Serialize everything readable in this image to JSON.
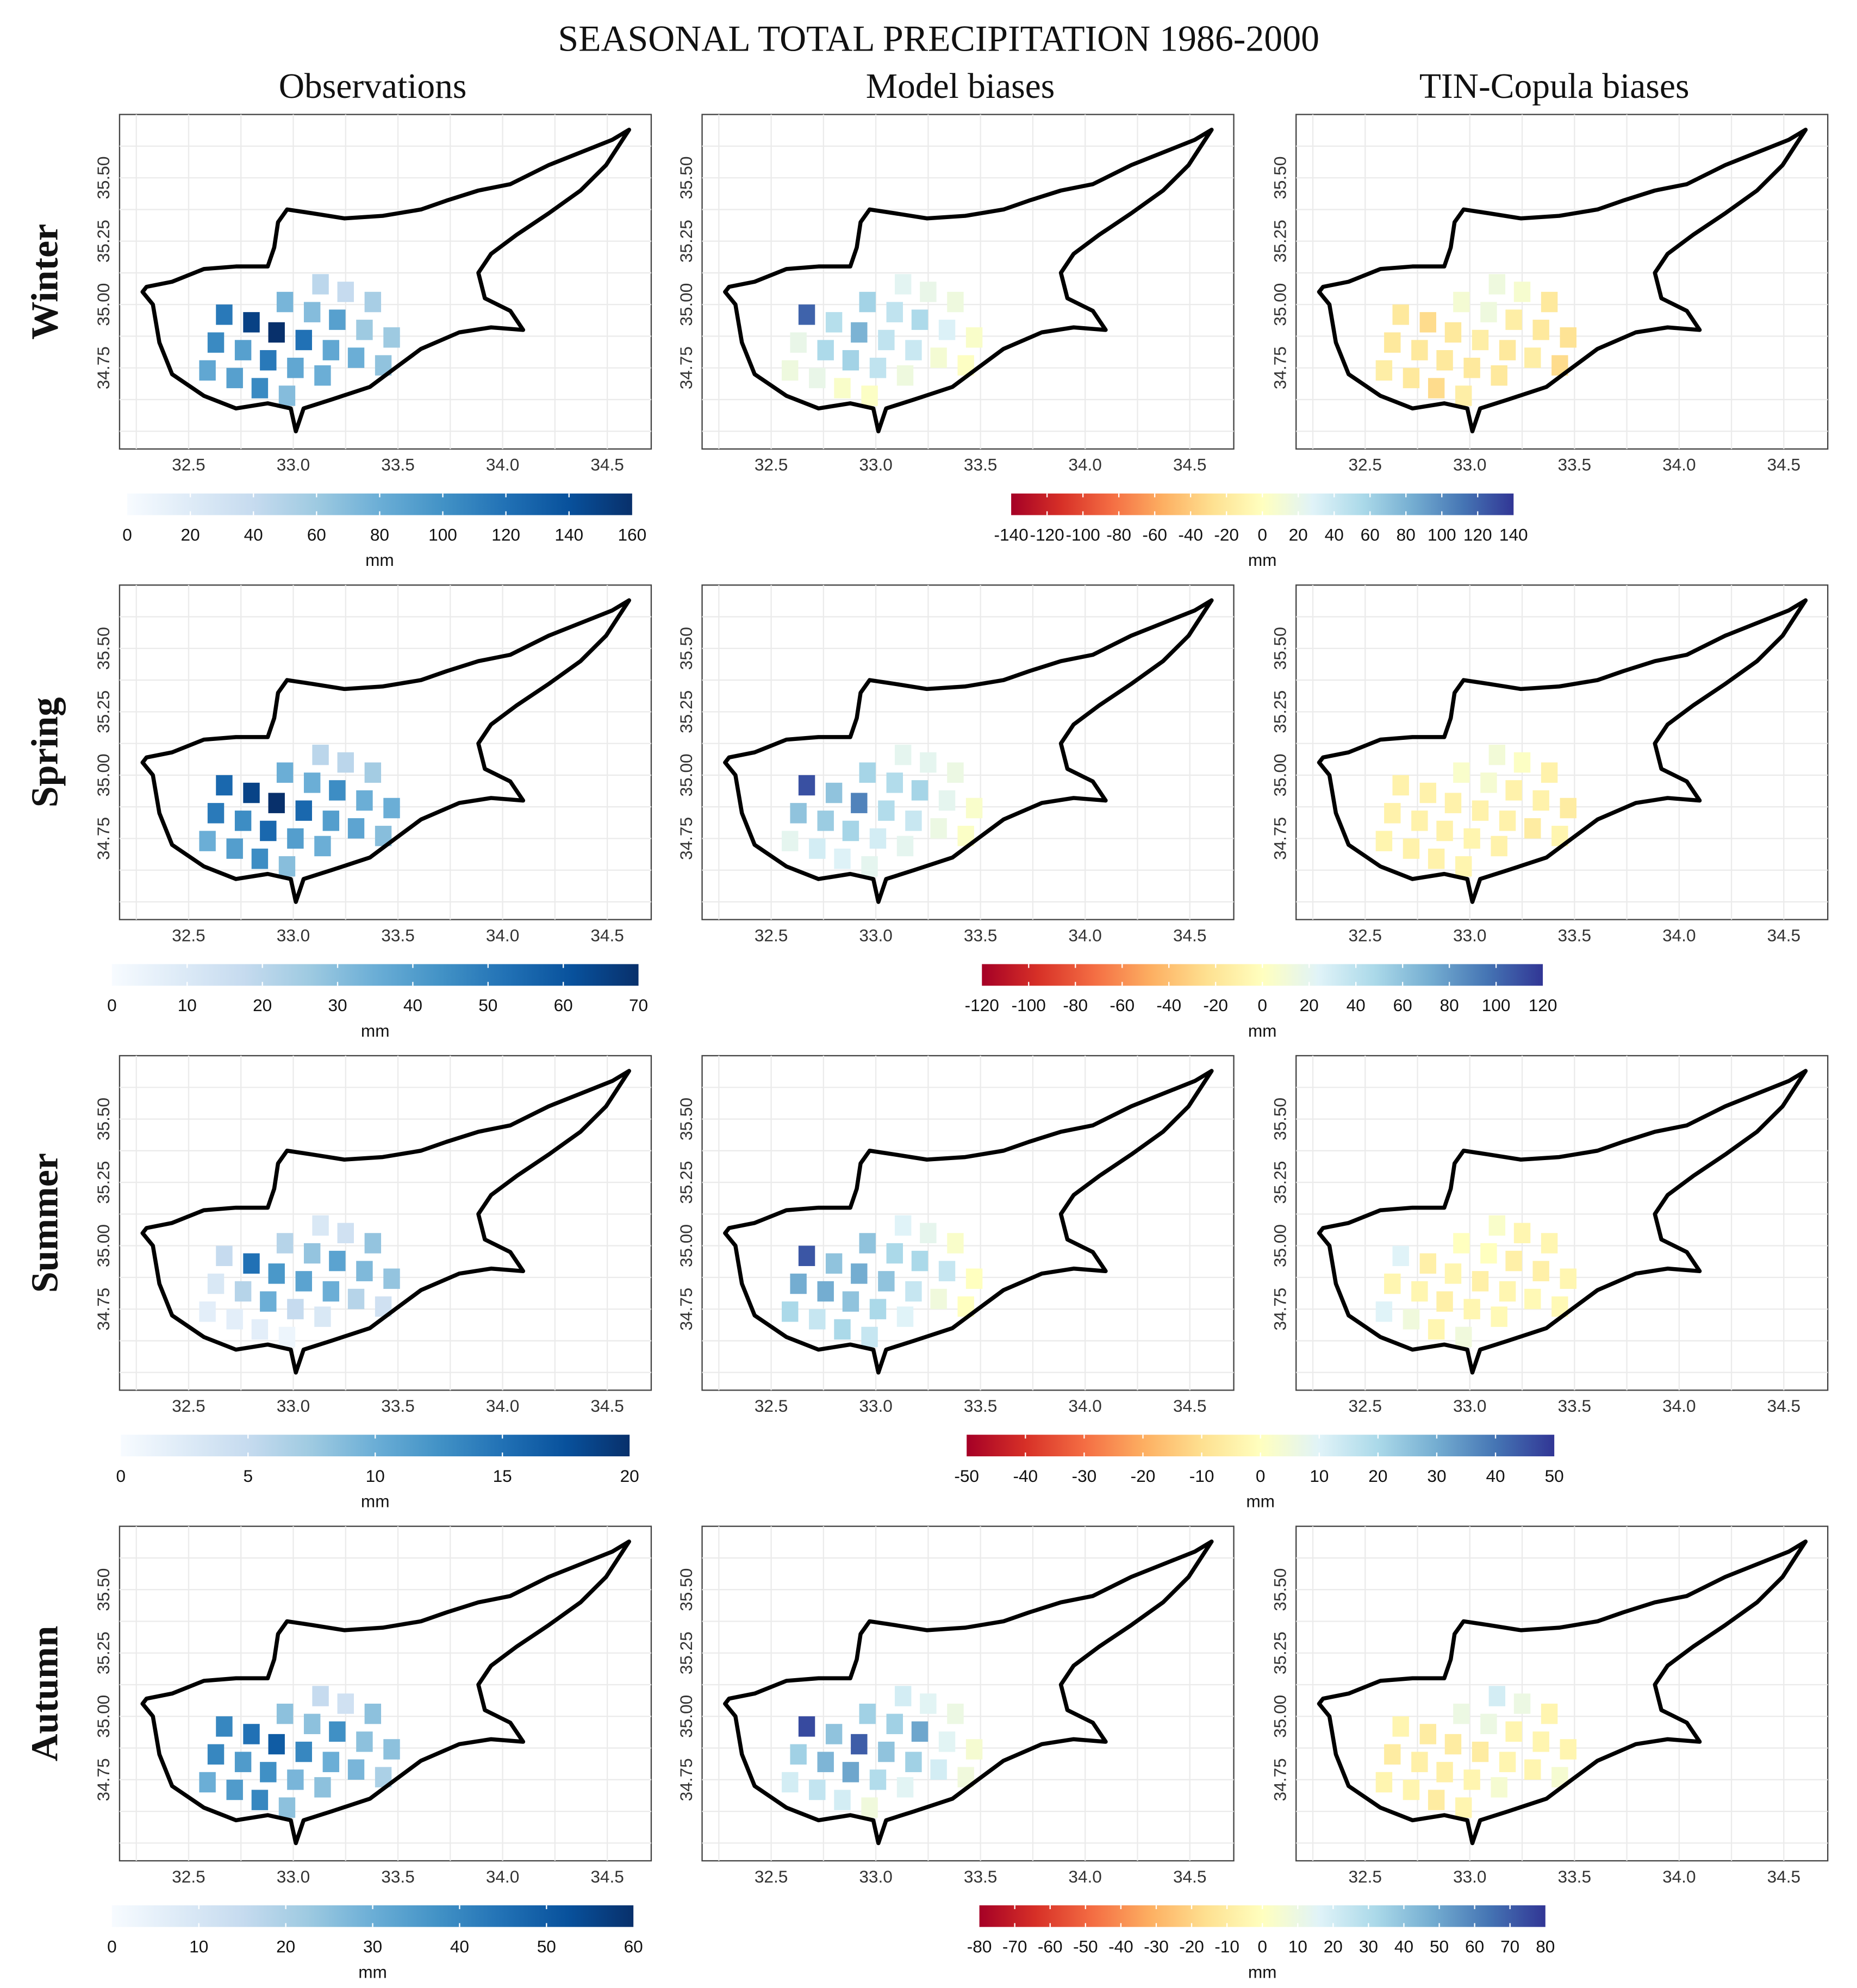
{
  "title": "SEASONAL TOTAL PRECIPITATION 1986-2000",
  "columns": [
    "Observations",
    "Model biases",
    "TIN-Copula biases"
  ],
  "unit": "mm",
  "colors": {
    "obs_scale": [
      "#f7fbff",
      "#deebf7",
      "#c6dbef",
      "#9ecae1",
      "#6baed6",
      "#4292c6",
      "#2171b5",
      "#08519c",
      "#08306b"
    ],
    "bias_scale": [
      "#a50026",
      "#d73027",
      "#f46d43",
      "#fdae61",
      "#fee090",
      "#ffffbf",
      "#e0f3f8",
      "#abd9e9",
      "#74add1",
      "#4575b4",
      "#313695"
    ],
    "outline": "#000000",
    "grid": "#ebebeb"
  },
  "map_axes": {
    "x_ticks": [
      "32.5",
      "33.0",
      "33.5",
      "34.0",
      "34.5"
    ],
    "y_ticks": [
      "35.50",
      "35.25",
      "35.00",
      "34.75"
    ]
  },
  "cyprus_outline_lonlat": [
    [
      32.28,
      35.05
    ],
    [
      32.329,
      35.0
    ],
    [
      32.36,
      34.85
    ],
    [
      32.421,
      34.725
    ],
    [
      32.573,
      34.64
    ],
    [
      32.726,
      34.59
    ],
    [
      32.878,
      34.61
    ],
    [
      32.988,
      34.59
    ],
    [
      33.012,
      34.5
    ],
    [
      33.049,
      34.59
    ],
    [
      33.183,
      34.625
    ],
    [
      33.366,
      34.675
    ],
    [
      33.488,
      34.75
    ],
    [
      33.61,
      34.825
    ],
    [
      33.793,
      34.89
    ],
    [
      33.945,
      34.91
    ],
    [
      34.098,
      34.9
    ],
    [
      34.037,
      34.975
    ],
    [
      33.915,
      35.025
    ],
    [
      33.884,
      35.125
    ],
    [
      33.945,
      35.2
    ],
    [
      34.067,
      35.275
    ],
    [
      34.22,
      35.36
    ],
    [
      34.372,
      35.45
    ],
    [
      34.494,
      35.55
    ],
    [
      34.604,
      35.69
    ],
    [
      34.524,
      35.65
    ],
    [
      34.402,
      35.61
    ],
    [
      34.22,
      35.55
    ],
    [
      34.037,
      35.475
    ],
    [
      33.884,
      35.45
    ],
    [
      33.732,
      35.41
    ],
    [
      33.61,
      35.375
    ],
    [
      33.427,
      35.35
    ],
    [
      33.244,
      35.34
    ],
    [
      33.091,
      35.36
    ],
    [
      32.97,
      35.375
    ],
    [
      32.927,
      35.325
    ],
    [
      32.909,
      35.225
    ],
    [
      32.878,
      35.15
    ],
    [
      32.726,
      35.15
    ],
    [
      32.573,
      35.14
    ],
    [
      32.421,
      35.09
    ],
    [
      32.299,
      35.07
    ]
  ],
  "grid_cells_lonlat": [
    [
      32.67,
      34.96
    ],
    [
      32.8,
      34.93
    ],
    [
      32.92,
      34.89
    ],
    [
      32.96,
      35.01
    ],
    [
      33.09,
      34.97
    ],
    [
      33.13,
      35.08
    ],
    [
      33.25,
      35.05
    ],
    [
      33.38,
      35.01
    ],
    [
      33.21,
      34.94
    ],
    [
      33.34,
      34.9
    ],
    [
      33.47,
      34.87
    ],
    [
      32.63,
      34.85
    ],
    [
      32.76,
      34.82
    ],
    [
      33.05,
      34.86
    ],
    [
      33.18,
      34.82
    ],
    [
      33.3,
      34.79
    ],
    [
      33.43,
      34.76
    ],
    [
      32.88,
      34.78
    ],
    [
      33.01,
      34.75
    ],
    [
      33.14,
      34.72
    ],
    [
      32.59,
      34.74
    ],
    [
      32.72,
      34.71
    ],
    [
      32.84,
      34.67
    ],
    [
      32.97,
      34.64
    ]
  ],
  "chart_data": [
    {
      "type": "heatmap",
      "season": "Winter",
      "obs": {
        "range": [
          0,
          160
        ],
        "ticks": [
          "0",
          "20",
          "40",
          "60",
          "80",
          "100",
          "120",
          "140",
          "160"
        ],
        "label": "mm",
        "values": [
          115,
          150,
          160,
          75,
          70,
          45,
          40,
          55,
          90,
          60,
          60,
          105,
          90,
          120,
          85,
          80,
          65,
          115,
          85,
          80,
          85,
          90,
          105,
          70
        ]
      },
      "bias": {
        "range": [
          -140,
          140
        ],
        "ticks": [
          "-140",
          "-120",
          "-100",
          "-80",
          "-60",
          "-40",
          "-20",
          "0",
          "20",
          "40",
          "60",
          "80",
          "100",
          "120",
          "140"
        ],
        "label": "mm"
      },
      "model": {
        "values": [
          120,
          50,
          80,
          60,
          45,
          25,
          20,
          15,
          55,
          30,
          5,
          20,
          55,
          45,
          40,
          10,
          2,
          60,
          45,
          15,
          15,
          20,
          5,
          3
        ]
      },
      "tin": {
        "values": [
          -20,
          -30,
          -20,
          10,
          15,
          15,
          8,
          -20,
          -15,
          -20,
          -25,
          -20,
          -20,
          -15,
          -20,
          -15,
          -30,
          -20,
          -20,
          -20,
          -15,
          -20,
          -30,
          -15
        ]
      }
    },
    {
      "type": "heatmap",
      "season": "Spring",
      "obs": {
        "range": [
          0,
          70
        ],
        "ticks": [
          "0",
          "10",
          "20",
          "30",
          "40",
          "50",
          "60",
          "70"
        ],
        "label": "mm",
        "values": [
          55,
          65,
          70,
          35,
          35,
          20,
          20,
          25,
          45,
          35,
          35,
          50,
          45,
          55,
          40,
          38,
          30,
          55,
          40,
          35,
          35,
          40,
          45,
          30
        ]
      },
      "bias": {
        "range": [
          -120,
          120
        ],
        "ticks": [
          "-120",
          "-100",
          "-80",
          "-60",
          "-40",
          "-20",
          "0",
          "20",
          "40",
          "60",
          "80",
          "100",
          "120"
        ],
        "label": "mm"
      },
      "model": {
        "values": [
          110,
          60,
          90,
          50,
          45,
          20,
          20,
          15,
          50,
          20,
          5,
          60,
          55,
          45,
          35,
          15,
          3,
          50,
          30,
          20,
          20,
          30,
          25,
          20
        ]
      },
      "tin": {
        "values": [
          -10,
          -10,
          -10,
          5,
          8,
          10,
          2,
          -10,
          -10,
          -10,
          -15,
          -10,
          -10,
          -10,
          -10,
          -15,
          -8,
          -10,
          -8,
          -10,
          -8,
          -10,
          -10,
          -8
        ]
      }
    },
    {
      "type": "heatmap",
      "season": "Summer",
      "obs": {
        "range": [
          0,
          20
        ],
        "ticks": [
          "0",
          "5",
          "10",
          "15",
          "20"
        ],
        "label": "mm",
        "values": [
          5,
          15,
          12,
          6,
          8,
          3,
          4,
          8,
          11,
          9,
          8,
          3,
          6,
          11,
          10,
          6,
          4,
          10,
          5,
          3,
          2,
          2,
          2,
          1
        ]
      },
      "bias": {
        "range": [
          -50,
          50
        ],
        "ticks": [
          "-50",
          "-40",
          "-30",
          "-20",
          "-10",
          "0",
          "10",
          "20",
          "30",
          "40",
          "50"
        ],
        "label": "mm"
      },
      "model": {
        "values": [
          45,
          25,
          30,
          25,
          20,
          10,
          8,
          2,
          20,
          15,
          0,
          30,
          30,
          25,
          15,
          5,
          0,
          25,
          20,
          10,
          20,
          15,
          20,
          15
        ]
      },
      "tin": {
        "values": [
          10,
          -5,
          -3,
          0,
          0,
          2,
          -3,
          -3,
          -5,
          -5,
          -3,
          -3,
          -3,
          -5,
          -3,
          -2,
          -2,
          -5,
          -3,
          -2,
          10,
          5,
          -3,
          5
        ]
      }
    },
    {
      "type": "heatmap",
      "season": "Autumn",
      "obs": {
        "range": [
          0,
          60
        ],
        "ticks": [
          "0",
          "10",
          "20",
          "30",
          "40",
          "50",
          "60"
        ],
        "label": "mm",
        "values": [
          40,
          45,
          50,
          25,
          25,
          15,
          12,
          25,
          38,
          25,
          25,
          40,
          35,
          40,
          30,
          28,
          20,
          38,
          28,
          25,
          30,
          35,
          40,
          25
        ]
      },
      "bias": {
        "range": [
          -80,
          80
        ],
        "ticks": [
          "-80",
          "-70",
          "-60",
          "-50",
          "-40",
          "-30",
          "-20",
          "-10",
          "0",
          "10",
          "20",
          "30",
          "40",
          "50",
          "60",
          "70",
          "80"
        ],
        "label": "mm"
      },
      "model": {
        "values": [
          75,
          40,
          70,
          35,
          35,
          20,
          15,
          10,
          50,
          15,
          5,
          35,
          45,
          40,
          35,
          20,
          8,
          50,
          30,
          15,
          20,
          25,
          20,
          8
        ]
      },
      "tin": {
        "values": [
          -5,
          -10,
          -10,
          10,
          10,
          20,
          10,
          -5,
          -5,
          -5,
          -5,
          -10,
          -8,
          -10,
          -5,
          -5,
          5,
          -8,
          -5,
          5,
          -5,
          -5,
          -10,
          -5
        ]
      }
    }
  ]
}
